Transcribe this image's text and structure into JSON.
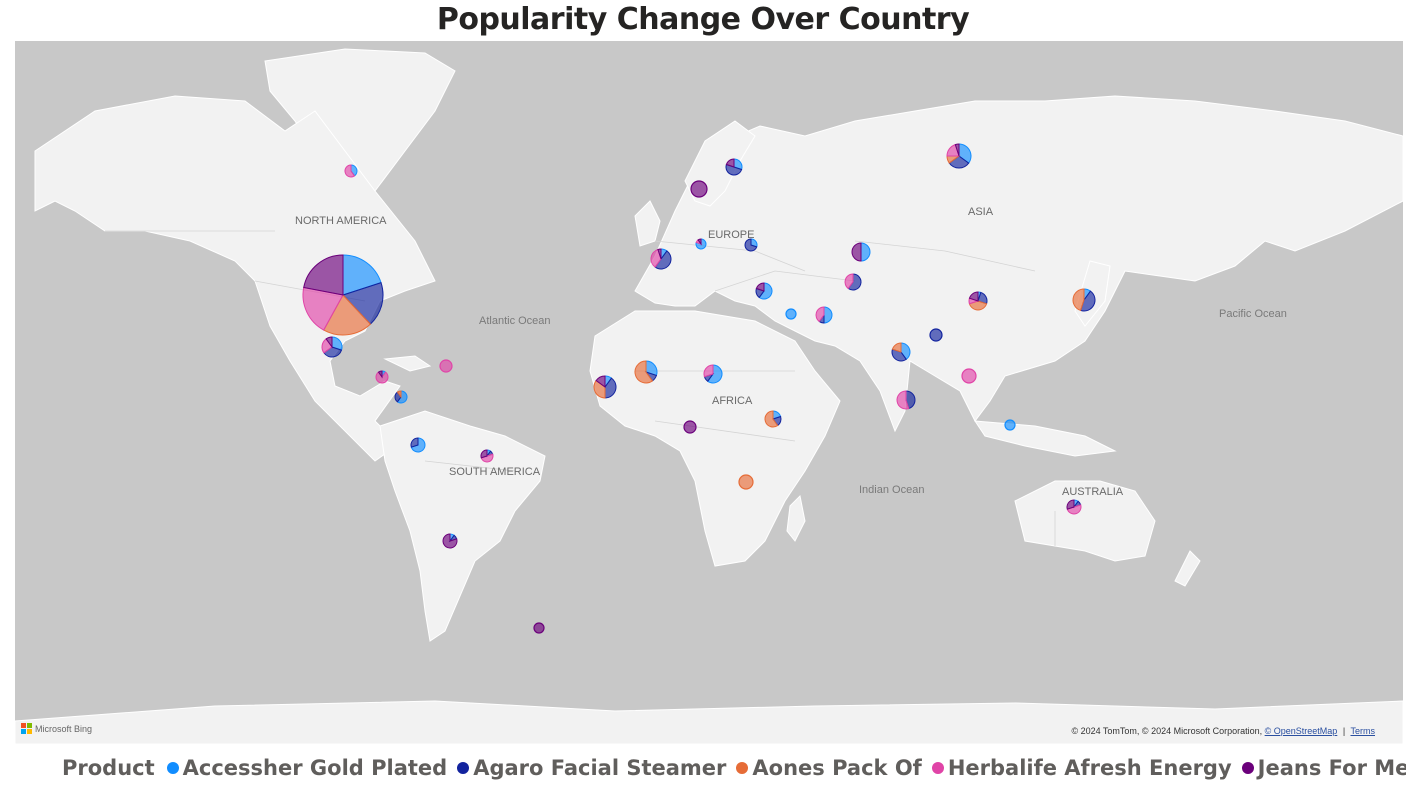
{
  "title": "Popularity Change Over Country",
  "map": {
    "region_labels": [
      {
        "id": "north-america",
        "text": "NORTH AMERICA"
      },
      {
        "id": "europe",
        "text": "EUROPE"
      },
      {
        "id": "asia",
        "text": "ASIA"
      },
      {
        "id": "africa",
        "text": "AFRICA"
      },
      {
        "id": "south-america",
        "text": "SOUTH AMERICA"
      },
      {
        "id": "australia",
        "text": "AUSTRALIA"
      }
    ],
    "ocean_labels": [
      {
        "id": "atlantic",
        "text": "Atlantic Ocean"
      },
      {
        "id": "pacific",
        "text": "Pacific Ocean"
      },
      {
        "id": "indian",
        "text": "Indian Ocean"
      }
    ],
    "provider_logo": "Microsoft Bing",
    "attribution": {
      "text": "© 2024 TomTom, © 2024 Microsoft Corporation, ",
      "osm_link": "© OpenStreetMap",
      "terms_link": "Terms"
    }
  },
  "legend": {
    "title": "Product",
    "items": [
      {
        "label": "Accessher Gold Plated",
        "color": "#118dff"
      },
      {
        "label": "Agaro Facial Steamer",
        "color": "#12239e"
      },
      {
        "label": "Aones Pack Of",
        "color": "#e66c37"
      },
      {
        "label": "Herbalife Afresh Energy",
        "color": "#e044a7"
      },
      {
        "label": "Jeans For Mens",
        "color": "#6b007b"
      }
    ]
  },
  "chart_data": {
    "type": "map-pie",
    "categories": [
      "Accessher Gold Plated",
      "Agaro Facial Steamer",
      "Aones Pack Of",
      "Herbalife Afresh Energy",
      "Jeans For Mens"
    ],
    "markers": [
      {
        "id": "usa",
        "size": 40,
        "values": [
          20,
          18,
          20,
          20,
          22
        ]
      },
      {
        "id": "canada",
        "size": 6,
        "values": [
          40,
          0,
          0,
          60,
          0
        ]
      },
      {
        "id": "mexico",
        "size": 10,
        "values": [
          30,
          35,
          0,
          25,
          10
        ]
      },
      {
        "id": "central-america",
        "size": 6,
        "values": [
          10,
          0,
          0,
          80,
          10
        ]
      },
      {
        "id": "caribbean",
        "size": 6,
        "values": [
          0,
          0,
          0,
          100,
          0
        ]
      },
      {
        "id": "colombia",
        "size": 6,
        "values": [
          60,
          30,
          10,
          0,
          0
        ]
      },
      {
        "id": "peru",
        "size": 7,
        "values": [
          70,
          30,
          0,
          0,
          0
        ]
      },
      {
        "id": "brazil",
        "size": 6,
        "values": [
          10,
          10,
          0,
          50,
          30
        ]
      },
      {
        "id": "argentina",
        "size": 7,
        "values": [
          10,
          10,
          0,
          0,
          80
        ]
      },
      {
        "id": "south-atlantic",
        "size": 5,
        "values": [
          0,
          0,
          0,
          0,
          100
        ]
      },
      {
        "id": "scandinavia",
        "size": 8,
        "values": [
          30,
          50,
          0,
          0,
          20
        ]
      },
      {
        "id": "norway-sea",
        "size": 8,
        "values": [
          0,
          0,
          0,
          0,
          100
        ]
      },
      {
        "id": "france",
        "size": 10,
        "values": [
          10,
          50,
          0,
          35,
          5
        ]
      },
      {
        "id": "germany",
        "size": 5,
        "values": [
          80,
          0,
          0,
          10,
          10
        ]
      },
      {
        "id": "ukraine",
        "size": 6,
        "values": [
          30,
          70,
          0,
          0,
          0
        ]
      },
      {
        "id": "turkey",
        "size": 8,
        "values": [
          60,
          20,
          0,
          0,
          20
        ]
      },
      {
        "id": "syria",
        "size": 5,
        "values": [
          100,
          0,
          0,
          0,
          0
        ]
      },
      {
        "id": "iran",
        "size": 8,
        "values": [
          50,
          10,
          0,
          40,
          0
        ]
      },
      {
        "id": "kazakhstan",
        "size": 9,
        "values": [
          50,
          0,
          0,
          0,
          50
        ]
      },
      {
        "id": "uzbekistan",
        "size": 8,
        "values": [
          0,
          60,
          0,
          40,
          0
        ]
      },
      {
        "id": "russia",
        "size": 12,
        "values": [
          35,
          30,
          10,
          20,
          5
        ]
      },
      {
        "id": "china",
        "size": 9,
        "values": [
          5,
          25,
          40,
          10,
          20
        ]
      },
      {
        "id": "japan",
        "size": 11,
        "values": [
          10,
          45,
          45,
          0,
          0
        ]
      },
      {
        "id": "nepal",
        "size": 6,
        "values": [
          0,
          100,
          0,
          0,
          0
        ]
      },
      {
        "id": "india",
        "size": 9,
        "values": [
          40,
          40,
          20,
          0,
          0
        ]
      },
      {
        "id": "southeast-asia",
        "size": 7,
        "values": [
          0,
          0,
          0,
          100,
          0
        ]
      },
      {
        "id": "sri-lanka",
        "size": 9,
        "values": [
          0,
          45,
          0,
          55,
          0
        ]
      },
      {
        "id": "indonesia",
        "size": 5,
        "values": [
          100,
          0,
          0,
          0,
          0
        ]
      },
      {
        "id": "australia",
        "size": 7,
        "values": [
          10,
          10,
          0,
          50,
          30
        ]
      },
      {
        "id": "west-africa",
        "size": 11,
        "values": [
          10,
          40,
          35,
          0,
          15
        ]
      },
      {
        "id": "mali",
        "size": 11,
        "values": [
          30,
          10,
          60,
          0,
          0
        ]
      },
      {
        "id": "chad",
        "size": 9,
        "values": [
          60,
          10,
          0,
          30,
          0
        ]
      },
      {
        "id": "gabon",
        "size": 6,
        "values": [
          0,
          0,
          0,
          0,
          100
        ]
      },
      {
        "id": "kenya",
        "size": 8,
        "values": [
          20,
          20,
          60,
          0,
          0
        ]
      },
      {
        "id": "zambia",
        "size": 7,
        "values": [
          0,
          0,
          100,
          0,
          0
        ]
      }
    ]
  }
}
